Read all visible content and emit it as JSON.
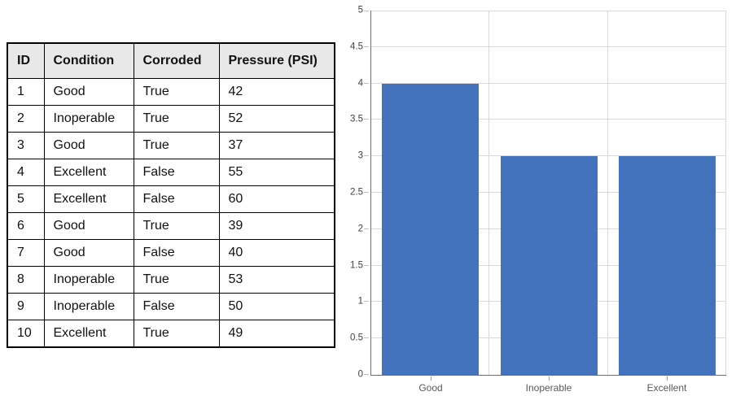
{
  "table": {
    "headers": [
      "ID",
      "Condition",
      "Corroded",
      "Pressure (PSI)"
    ],
    "rows": [
      [
        "1",
        "Good",
        "True",
        "42"
      ],
      [
        "2",
        "Inoperable",
        "True",
        "52"
      ],
      [
        "3",
        "Good",
        "True",
        "37"
      ],
      [
        "4",
        "Excellent",
        "False",
        "55"
      ],
      [
        "5",
        "Excellent",
        "False",
        "60"
      ],
      [
        "6",
        "Good",
        "True",
        "39"
      ],
      [
        "7",
        "Good",
        "False",
        "40"
      ],
      [
        "8",
        "Inoperable",
        "True",
        "53"
      ],
      [
        "9",
        "Inoperable",
        "False",
        "50"
      ],
      [
        "10",
        "Excellent",
        "True",
        "49"
      ]
    ],
    "header_bg": "#E8E8E8",
    "border_color": "#000000"
  },
  "chart_data": {
    "type": "bar",
    "categories": [
      "Good",
      "Inoperable",
      "Excellent"
    ],
    "values": [
      4,
      3,
      3
    ],
    "title": "",
    "xlabel": "",
    "ylabel": "",
    "ylim": [
      0,
      5
    ],
    "ytick_step": 0.5,
    "grid": true,
    "legend": false,
    "bar_color": "#4273BC",
    "gridline_color": "#D9D9D9",
    "axis_color": "#6E6E6E",
    "ytick_label_color": "#3F3F3F",
    "xtick_label_color": "#595959",
    "bar_width_ratio": 0.817
  }
}
